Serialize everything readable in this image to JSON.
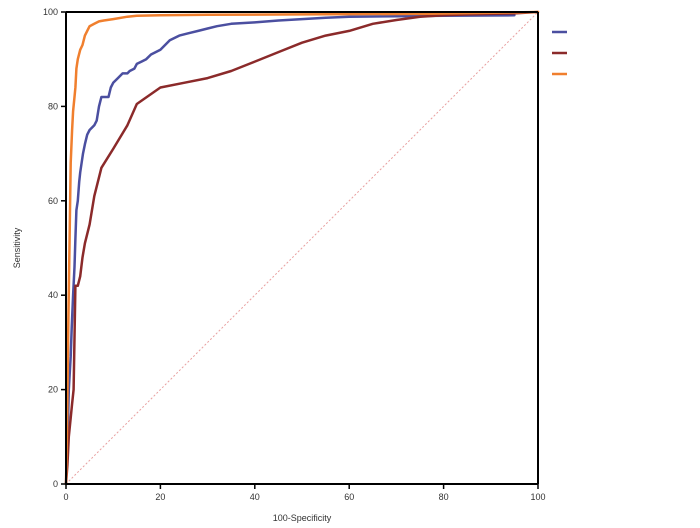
{
  "chart_data": {
    "type": "line",
    "title": "",
    "xlabel": "100-Specificity",
    "ylabel": "Sensitivity",
    "xlim": [
      0,
      100
    ],
    "ylim": [
      0,
      100
    ],
    "xticks": [
      "0",
      "20",
      "40",
      "60",
      "80",
      "100"
    ],
    "yticks": [
      "0",
      "20",
      "40",
      "60",
      "80",
      "100"
    ],
    "grid": false,
    "legend": "right",
    "reference_line": {
      "from": [
        0,
        0
      ],
      "to": [
        100,
        100
      ],
      "color": "#e8a0a0"
    },
    "series": [
      {
        "color": "#4b4fa0",
        "points": [
          [
            0,
            0
          ],
          [
            0.3,
            8
          ],
          [
            0.6,
            20
          ],
          [
            1,
            27
          ],
          [
            1.2,
            33
          ],
          [
            1.5,
            40
          ],
          [
            1.8,
            46
          ],
          [
            2,
            52
          ],
          [
            2.2,
            58
          ],
          [
            2.5,
            60
          ],
          [
            2.8,
            64
          ],
          [
            3,
            66
          ],
          [
            3.3,
            68
          ],
          [
            3.6,
            70
          ],
          [
            4,
            72
          ],
          [
            4.5,
            74
          ],
          [
            5,
            75
          ],
          [
            6,
            76
          ],
          [
            6.5,
            77
          ],
          [
            7,
            80
          ],
          [
            7.5,
            82
          ],
          [
            9,
            82
          ],
          [
            9.5,
            84
          ],
          [
            10,
            85
          ],
          [
            11,
            86
          ],
          [
            12,
            87
          ],
          [
            13,
            87
          ],
          [
            13.5,
            87.5
          ],
          [
            14.5,
            88
          ],
          [
            15,
            89
          ],
          [
            16,
            89.5
          ],
          [
            17,
            90
          ],
          [
            18,
            91
          ],
          [
            20,
            92
          ],
          [
            21,
            93
          ],
          [
            22,
            94
          ],
          [
            24,
            95
          ],
          [
            26,
            95.5
          ],
          [
            28,
            96
          ],
          [
            30,
            96.5
          ],
          [
            32,
            97
          ],
          [
            35,
            97.5
          ],
          [
            40,
            97.8
          ],
          [
            45,
            98.2
          ],
          [
            50,
            98.5
          ],
          [
            55,
            98.8
          ],
          [
            60,
            99
          ],
          [
            70,
            99.1
          ],
          [
            80,
            99.2
          ],
          [
            95,
            99.3
          ]
        ]
      },
      {
        "color": "#8b2a2a",
        "points": [
          [
            0,
            0
          ],
          [
            0.3,
            4
          ],
          [
            0.6,
            10
          ],
          [
            1,
            14
          ],
          [
            1.3,
            17
          ],
          [
            1.6,
            20
          ],
          [
            2,
            42
          ],
          [
            2.5,
            42
          ],
          [
            3,
            44
          ],
          [
            3.5,
            48
          ],
          [
            4,
            51
          ],
          [
            5,
            55
          ],
          [
            6,
            61
          ],
          [
            7.5,
            67
          ],
          [
            10,
            71
          ],
          [
            13,
            76
          ],
          [
            15,
            80.5
          ],
          [
            20,
            84
          ],
          [
            25,
            85
          ],
          [
            30,
            86
          ],
          [
            35,
            87.5
          ],
          [
            40,
            89.5
          ],
          [
            45,
            91.5
          ],
          [
            50,
            93.5
          ],
          [
            55,
            95
          ],
          [
            60,
            96
          ],
          [
            65,
            97.5
          ],
          [
            70,
            98.3
          ],
          [
            75,
            99
          ],
          [
            80,
            99.3
          ],
          [
            85,
            99.5
          ],
          [
            90,
            99.6
          ],
          [
            95,
            99.7
          ],
          [
            100,
            100
          ]
        ]
      },
      {
        "color": "#f07f2e",
        "points": [
          [
            0,
            0
          ],
          [
            0.2,
            10
          ],
          [
            0.5,
            35
          ],
          [
            0.8,
            55
          ],
          [
            1,
            68
          ],
          [
            1.3,
            75
          ],
          [
            1.5,
            79
          ],
          [
            1.8,
            82
          ],
          [
            2,
            84
          ],
          [
            2.2,
            88
          ],
          [
            2.5,
            90
          ],
          [
            3,
            92
          ],
          [
            3.5,
            93
          ],
          [
            4,
            95
          ],
          [
            4.5,
            96
          ],
          [
            5,
            97
          ],
          [
            6,
            97.5
          ],
          [
            7,
            98
          ],
          [
            8,
            98.2
          ],
          [
            10,
            98.5
          ],
          [
            13,
            99
          ],
          [
            15,
            99.2
          ],
          [
            20,
            99.3
          ],
          [
            30,
            99.4
          ],
          [
            50,
            99.5
          ],
          [
            75,
            99.6
          ],
          [
            100,
            100
          ]
        ]
      }
    ]
  }
}
